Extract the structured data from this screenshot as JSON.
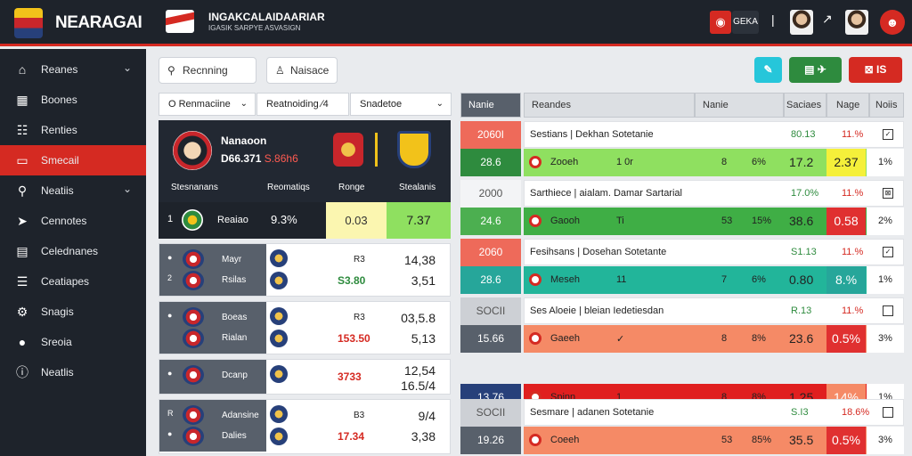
{
  "header": {
    "brand": "NEARAGAI",
    "headline": "INGAKCALAIDAARIAR",
    "subline": "IGASIK SARPYE ASVASIGN",
    "badge": "GEKA",
    "sep": "|",
    "arrow": "↗",
    "colors": {
      "accent": "#d52a22",
      "bar": "#1e232b"
    }
  },
  "sidebar": {
    "items": [
      {
        "label": "Reanes",
        "icon": "home-icon",
        "glyph": "⌂",
        "chevron": "⌄"
      },
      {
        "label": "Boones",
        "icon": "grid-icon",
        "glyph": "▦",
        "chevron": ""
      },
      {
        "label": "Renties",
        "icon": "users-icon",
        "glyph": "☷",
        "chevron": ""
      },
      {
        "label": "Smecail",
        "icon": "card-icon",
        "glyph": "▭",
        "chevron": "",
        "active": true
      },
      {
        "label": "Neatiis",
        "icon": "search-icon",
        "glyph": "⚲",
        "chevron": "⌄"
      },
      {
        "label": "Cennotes",
        "icon": "pointer-icon",
        "glyph": "➤",
        "chevron": ""
      },
      {
        "label": "Celednanes",
        "icon": "calendar-icon",
        "glyph": "▤",
        "chevron": ""
      },
      {
        "label": "Ceatiapes",
        "icon": "list-icon",
        "glyph": "☰",
        "chevron": ""
      },
      {
        "label": "Snagis",
        "icon": "gear-icon",
        "glyph": "⚙",
        "chevron": ""
      },
      {
        "label": "Sreoia",
        "icon": "chat-icon",
        "glyph": "●",
        "chevron": ""
      },
      {
        "label": "Neatlis",
        "icon": "info-icon",
        "glyph": "ⓘ",
        "chevron": ""
      }
    ]
  },
  "toolbar": {
    "btn1": "Recnning",
    "btn2": "Naisace",
    "actions": [
      {
        "label": "✎",
        "color": "#26c6da"
      },
      {
        "label": "▤  ✈",
        "color": "#2e8b3e"
      },
      {
        "label": "⊠   IS",
        "color": "#d52a22"
      }
    ]
  },
  "filters": {
    "f1": "O  Renmaciine",
    "f2": "Reatnoiding  ∕4",
    "f3": "Snadetoe"
  },
  "feature": {
    "title": "Nanaoon",
    "score_a": "D66.371",
    "score_b": "S.86h6",
    "labels": [
      "Stesnanans",
      "Reomatiqs",
      "Ronge",
      "Stealanis"
    ],
    "row": {
      "num": "1",
      "name": "Reaiao",
      "pct": "9.3%",
      "c1": "0.03",
      "c2": "7.37"
    }
  },
  "cards": [
    {
      "n1": "●",
      "n2": "2",
      "t1": "Mayr",
      "t2": "Rsilas",
      "r1": "R3",
      "r2": "S3.80",
      "green": true,
      "v1": "14,38",
      "v2": "3,51"
    },
    {
      "n1": "●",
      "n2": "",
      "t1": "Boeas",
      "t2": "Rialan",
      "r1": "R3",
      "r2": "153.50",
      "green": false,
      "v1": "03,5.8",
      "v2": "5,13"
    },
    {
      "n1": "●",
      "n2": "",
      "t1": "Dcanp",
      "t2": "",
      "r1": "",
      "r2": "3733",
      "green": false,
      "v1": "12,54",
      "v2": "16.5/4"
    },
    {
      "n1": "R",
      "n2": "●",
      "t1": "Adansine",
      "t2": "Dalies",
      "r1": "B3",
      "r2": "17.34",
      "green": false,
      "v1": "9/4",
      "v2": "3,38"
    }
  ],
  "table": {
    "headers": [
      "Nanie",
      "Reandes",
      "Nanie",
      "Saciaes",
      "Nage",
      "Noiis"
    ],
    "rows": [
      {
        "lc_top": "2060I",
        "lc_top_color": "#ee6a5a",
        "lc_bot": "28.6",
        "lc_bot_color": "#2e8b3e",
        "title": "Sestians | Dekhan Sotetanie",
        "a": "80.13",
        "b": "11.%",
        "check": "✓",
        "bar_color": "#8fe060",
        "name": "Zooeh",
        "p1": "1  0r",
        "p2": "8",
        "p3": "6%",
        "p4": "17.2",
        "box": "2.37",
        "box_color": "#f5f03a",
        "p5": "1%"
      },
      {
        "lc_top": "2000",
        "lc_top_color": "#f3f4f6",
        "lc_bot": "24.6",
        "lc_bot_color": "#4caf50",
        "title": "Sarthiece | aialam. Damar Sartarial",
        "a": "17.0%",
        "b": "11.%",
        "check": "⊠",
        "bar_color": "#3fae45",
        "name": "Gaooh",
        "p1": "Ti",
        "p2": "53",
        "p3": "15%",
        "p4": "38.6",
        "box": "0.58",
        "box_color": "#e03030",
        "p5": "2%"
      },
      {
        "lc_top": "2060",
        "lc_top_color": "#ee6a5a",
        "lc_bot": "28.6",
        "lc_bot_color": "#26a69a",
        "title": "Fesihsans | Dosehan Sotetante",
        "a": "S1.13",
        "b": "11.%",
        "check": "✓",
        "bar_color": "#22b59a",
        "name": "Meseh",
        "p1": "11",
        "p2": "7",
        "p3": "6%",
        "p4": "0.80",
        "box": "8.%",
        "box_color": "#26a69a",
        "p5": "1%"
      },
      {
        "lc_top": "SOCII",
        "lc_top_color": "#cdd0d5",
        "lc_bot": "15.66",
        "lc_bot_color": "#58606b",
        "title": "Ses Aloeie | bleian Iedetiesdan",
        "a": "R.13",
        "b": "11.%",
        "check": "",
        "bar_color": "#f58a66",
        "name": "Gaeeh",
        "p1": "✓",
        "p2": "8",
        "p3": "8%",
        "p4": "23.6",
        "box": "0.5%",
        "box_color": "#e03030",
        "p5": "3%"
      },
      {
        "lc_top": "",
        "lc_top_color": "#e9ebee",
        "lc_bot": "13.76",
        "lc_bot_color": "#27407a",
        "title": "",
        "a": "",
        "b": "",
        "check": "",
        "bar_color": "#e01f1f",
        "name": "Spinn",
        "p1": "1",
        "p2": "8",
        "p3": "8%",
        "p4": "1.25",
        "box": "14%",
        "box_color": "#f58a66",
        "p5": "1%"
      },
      {
        "lc_top": "SOCII",
        "lc_top_color": "#cdd0d5",
        "lc_bot": "19.26",
        "lc_bot_color": "#58606b",
        "title": "Sesmare | adanen Sotetanie",
        "a": "S.I3",
        "b": "18.6%",
        "check": "",
        "bar_color": "#f58a66",
        "name": "Coeeh",
        "p1": "",
        "p2": "53",
        "p3": "85%",
        "p4": "35.5",
        "box": "0.5%",
        "box_color": "#e03030",
        "p5": "3%"
      }
    ]
  }
}
